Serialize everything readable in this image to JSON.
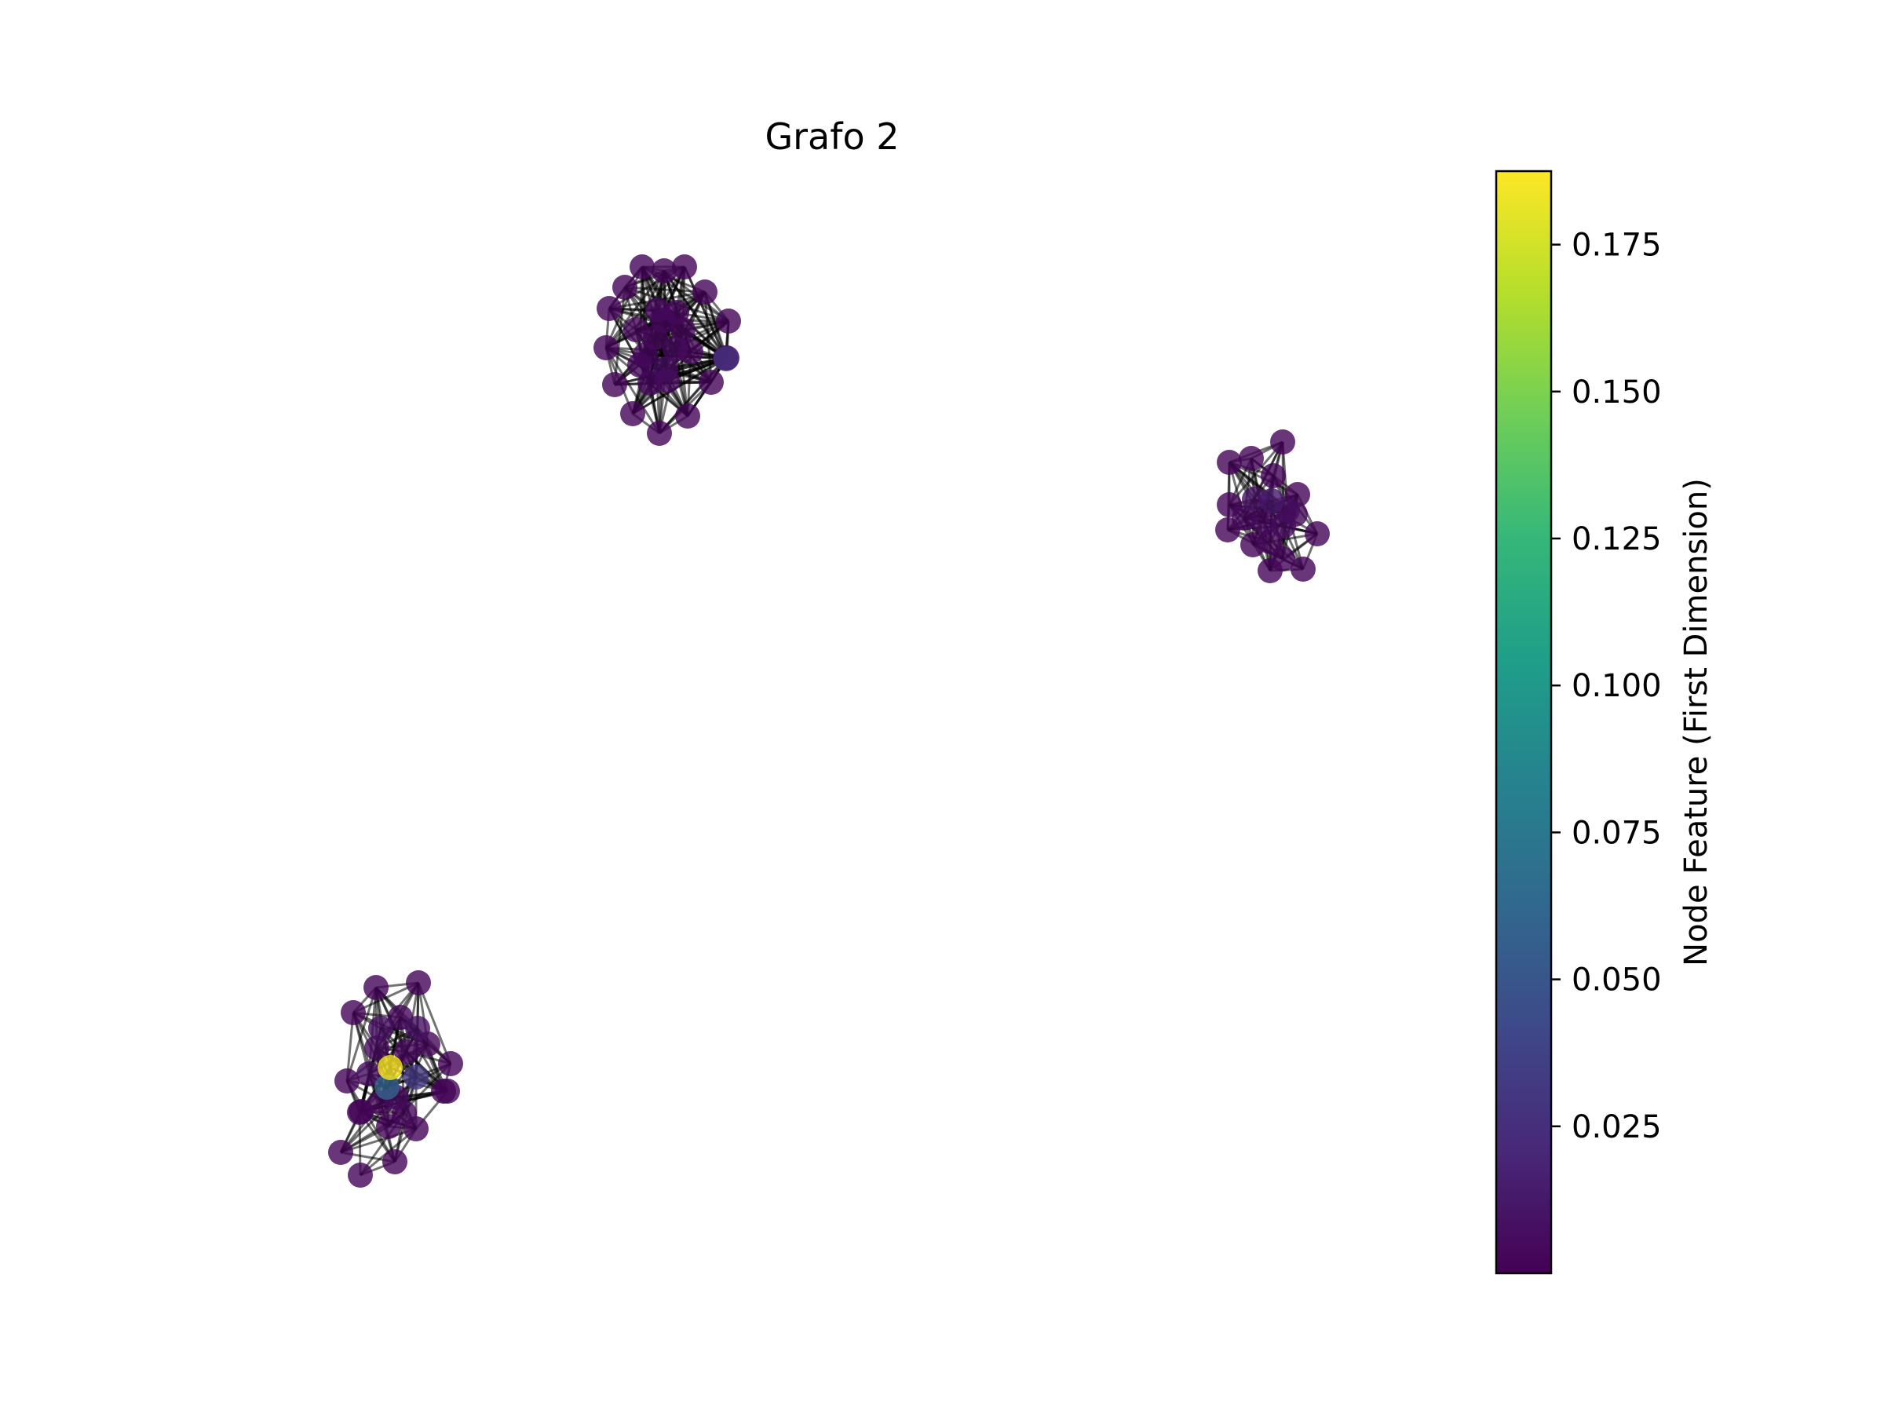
{
  "title": "Grafo 2",
  "colorbar": {
    "label": "Node Feature (First Dimension)",
    "min": 0.0,
    "max": 0.1875,
    "ticks": [
      "0.025",
      "0.050",
      "0.075",
      "0.100",
      "0.125",
      "0.150",
      "0.175"
    ],
    "colormap": "viridis",
    "colors": [
      "#440154",
      "#482878",
      "#3e4989",
      "#31688e",
      "#26828e",
      "#1f9e89",
      "#35b779",
      "#6ece58",
      "#b5de2b",
      "#fde725"
    ]
  },
  "clusters": [
    {
      "name": "top-center",
      "values": [
        0.002,
        0.002,
        0.002,
        0.002,
        0.002,
        0.002,
        0.002,
        0.002,
        0.002,
        0.002,
        0.002,
        0.002,
        0.002,
        0.002,
        0.002,
        0.028,
        0.003,
        0.004,
        0.003,
        0.004,
        0.005,
        0.003,
        0.006,
        0.004,
        0.003,
        0.005,
        0.004,
        0.003,
        0.004
      ]
    },
    {
      "name": "right",
      "values": [
        0.002,
        0.002,
        0.002,
        0.002,
        0.002,
        0.002,
        0.002,
        0.002,
        0.002,
        0.002,
        0.002,
        0.002,
        0.008,
        0.012,
        0.006,
        0.004,
        0.005,
        0.003,
        0.004,
        0.003
      ]
    },
    {
      "name": "bottom-left",
      "values": [
        0.002,
        0.002,
        0.002,
        0.002,
        0.002,
        0.002,
        0.002,
        0.002,
        0.002,
        0.002,
        0.002,
        0.002,
        0.002,
        0.002,
        0.187,
        0.06,
        0.03,
        0.006,
        0.004,
        0.008,
        0.005,
        0.004,
        0.003,
        0.005,
        0.006,
        0.004,
        0.003
      ]
    }
  ]
}
